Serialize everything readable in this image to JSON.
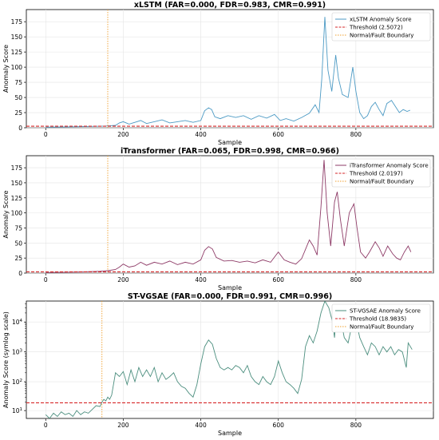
{
  "figure": {
    "panels": [
      {
        "title": "xLSTM (FAR=0.000, FDR=0.983, CMR=0.991)",
        "xlabel": "Sample",
        "ylabel": "Anomaly Score",
        "legend": [
          "xLSTM Anomaly Score",
          "Threshold (2.5072)",
          "Normal/Fault Boundary"
        ]
      },
      {
        "title": "iTransformer (FAR=0.065, FDR=0.998, CMR=0.966)",
        "xlabel": "Sample",
        "ylabel": "Anomaly Score",
        "legend": [
          "iTransformer Anomaly Score",
          "Threshold (2.0197)",
          "Normal/Fault Boundary"
        ]
      },
      {
        "title": "ST-VGSAE (FAR=0.000, FDR=0.991, CMR=0.996)",
        "xlabel": "Sample",
        "ylabel": "Anomaly Score (symlog scale)",
        "legend": [
          "ST-VGSAE Anomaly Score",
          "Threshold (18.9835)",
          "Normal/Fault Boundary"
        ]
      }
    ]
  },
  "chart_data": [
    {
      "type": "line",
      "title": "xLSTM (FAR=0.000, FDR=0.983, CMR=0.991)",
      "xlabel": "Sample",
      "ylabel": "Anomaly Score",
      "xlim": [
        -50,
        1000
      ],
      "ylim": [
        0,
        195
      ],
      "xticks": [
        0,
        200,
        400,
        600,
        800
      ],
      "yticks": [
        0,
        25,
        50,
        75,
        100,
        125,
        150,
        175
      ],
      "yscale": "linear",
      "grid": true,
      "legend_position": "top-right",
      "threshold": 2.5072,
      "boundary": 160,
      "series": [
        {
          "name": "xLSTM Anomaly Score",
          "color": "#4c9ac4",
          "points": [
            [
              0,
              1
            ],
            [
              50,
              1.5
            ],
            [
              100,
              2
            ],
            [
              140,
              2.5
            ],
            [
              160,
              3
            ],
            [
              180,
              4
            ],
            [
              190,
              8
            ],
            [
              200,
              10
            ],
            [
              215,
              6
            ],
            [
              230,
              9
            ],
            [
              245,
              12
            ],
            [
              260,
              7
            ],
            [
              280,
              10
            ],
            [
              300,
              13
            ],
            [
              320,
              8
            ],
            [
              340,
              10
            ],
            [
              360,
              12
            ],
            [
              380,
              9
            ],
            [
              400,
              12
            ],
            [
              410,
              28
            ],
            [
              420,
              33
            ],
            [
              428,
              30
            ],
            [
              436,
              18
            ],
            [
              450,
              15
            ],
            [
              470,
              20
            ],
            [
              490,
              17
            ],
            [
              510,
              20
            ],
            [
              530,
              14
            ],
            [
              550,
              20
            ],
            [
              570,
              16
            ],
            [
              590,
              22
            ],
            [
              605,
              12
            ],
            [
              620,
              15
            ],
            [
              640,
              11
            ],
            [
              660,
              17
            ],
            [
              680,
              24
            ],
            [
              695,
              38
            ],
            [
              705,
              25
            ],
            [
              712,
              80
            ],
            [
              720,
              183
            ],
            [
              728,
              95
            ],
            [
              738,
              60
            ],
            [
              748,
              120
            ],
            [
              755,
              82
            ],
            [
              765,
              55
            ],
            [
              780,
              50
            ],
            [
              792,
              100
            ],
            [
              800,
              60
            ],
            [
              810,
              25
            ],
            [
              820,
              15
            ],
            [
              830,
              20
            ],
            [
              840,
              35
            ],
            [
              850,
              42
            ],
            [
              860,
              30
            ],
            [
              870,
              20
            ],
            [
              880,
              40
            ],
            [
              892,
              45
            ],
            [
              902,
              35
            ],
            [
              912,
              25
            ],
            [
              922,
              30
            ],
            [
              932,
              27
            ],
            [
              940,
              29
            ]
          ]
        }
      ]
    },
    {
      "type": "line",
      "title": "iTransformer (FAR=0.065, FDR=0.998, CMR=0.966)",
      "xlabel": "Sample",
      "ylabel": "Anomaly Score",
      "xlim": [
        -50,
        1000
      ],
      "ylim": [
        0,
        195
      ],
      "xticks": [
        0,
        200,
        400,
        600,
        800
      ],
      "yticks": [
        0,
        25,
        50,
        75,
        100,
        125,
        150,
        175
      ],
      "yscale": "linear",
      "grid": true,
      "legend_position": "top-right",
      "threshold": 2.0197,
      "boundary": 160,
      "series": [
        {
          "name": "iTransformer Anomaly Score",
          "color": "#8e3b67",
          "points": [
            [
              0,
              1
            ],
            [
              50,
              1.5
            ],
            [
              100,
              2
            ],
            [
              140,
              3
            ],
            [
              160,
              4
            ],
            [
              180,
              6
            ],
            [
              190,
              10
            ],
            [
              200,
              15
            ],
            [
              215,
              10
            ],
            [
              230,
              12
            ],
            [
              245,
              18
            ],
            [
              260,
              13
            ],
            [
              280,
              18
            ],
            [
              300,
              15
            ],
            [
              320,
              20
            ],
            [
              340,
              14
            ],
            [
              360,
              18
            ],
            [
              380,
              15
            ],
            [
              400,
              22
            ],
            [
              410,
              38
            ],
            [
              420,
              44
            ],
            [
              430,
              40
            ],
            [
              440,
              26
            ],
            [
              460,
              20
            ],
            [
              480,
              21
            ],
            [
              500,
              18
            ],
            [
              520,
              20
            ],
            [
              540,
              17
            ],
            [
              560,
              22
            ],
            [
              580,
              18
            ],
            [
              600,
              35
            ],
            [
              615,
              22
            ],
            [
              630,
              18
            ],
            [
              645,
              15
            ],
            [
              660,
              24
            ],
            [
              680,
              55
            ],
            [
              690,
              45
            ],
            [
              700,
              30
            ],
            [
              710,
              110
            ],
            [
              718,
              188
            ],
            [
              726,
              100
            ],
            [
              735,
              45
            ],
            [
              745,
              118
            ],
            [
              752,
              135
            ],
            [
              760,
              90
            ],
            [
              770,
              45
            ],
            [
              783,
              100
            ],
            [
              795,
              115
            ],
            [
              803,
              75
            ],
            [
              812,
              35
            ],
            [
              825,
              25
            ],
            [
              835,
              35
            ],
            [
              850,
              52
            ],
            [
              860,
              42
            ],
            [
              870,
              28
            ],
            [
              882,
              45
            ],
            [
              895,
              32
            ],
            [
              905,
              25
            ],
            [
              915,
              22
            ],
            [
              925,
              35
            ],
            [
              935,
              45
            ],
            [
              942,
              35
            ]
          ]
        }
      ]
    },
    {
      "type": "line",
      "title": "ST-VGSAE (FAR=0.000, FDR=0.991, CMR=0.996)",
      "xlabel": "Sample",
      "ylabel": "Anomaly Score (symlog scale)",
      "xlim": [
        -50,
        1000
      ],
      "xticks": [
        0,
        200,
        400,
        600,
        800
      ],
      "yscale": "symlog",
      "ytick_labels": [
        "10^1",
        "10^2",
        "10^3",
        "10^4"
      ],
      "grid": true,
      "legend_position": "top-right",
      "threshold": 18.9835,
      "boundary": 145,
      "series": [
        {
          "name": "ST-VGSAE Anomaly Score",
          "color": "#4b8e7e",
          "points": [
            [
              0,
              7
            ],
            [
              10,
              5
            ],
            [
              20,
              8
            ],
            [
              30,
              6
            ],
            [
              40,
              9
            ],
            [
              50,
              7
            ],
            [
              60,
              8
            ],
            [
              70,
              6
            ],
            [
              80,
              10
            ],
            [
              90,
              7
            ],
            [
              100,
              9
            ],
            [
              110,
              8
            ],
            [
              120,
              11
            ],
            [
              130,
              15
            ],
            [
              140,
              14
            ],
            [
              145,
              20
            ],
            [
              150,
              25
            ],
            [
              155,
              22
            ],
            [
              160,
              30
            ],
            [
              165,
              25
            ],
            [
              170,
              35
            ],
            [
              180,
              200
            ],
            [
              190,
              150
            ],
            [
              200,
              220
            ],
            [
              210,
              80
            ],
            [
              220,
              250
            ],
            [
              230,
              100
            ],
            [
              240,
              300
            ],
            [
              250,
              150
            ],
            [
              260,
              250
            ],
            [
              270,
              150
            ],
            [
              280,
              300
            ],
            [
              290,
              100
            ],
            [
              300,
              200
            ],
            [
              310,
              120
            ],
            [
              320,
              150
            ],
            [
              330,
              200
            ],
            [
              340,
              100
            ],
            [
              350,
              70
            ],
            [
              360,
              60
            ],
            [
              370,
              40
            ],
            [
              380,
              30
            ],
            [
              390,
              80
            ],
            [
              400,
              400
            ],
            [
              410,
              1500
            ],
            [
              420,
              2500
            ],
            [
              430,
              1800
            ],
            [
              440,
              600
            ],
            [
              450,
              300
            ],
            [
              460,
              250
            ],
            [
              470,
              300
            ],
            [
              480,
              250
            ],
            [
              490,
              350
            ],
            [
              500,
              300
            ],
            [
              510,
              200
            ],
            [
              520,
              350
            ],
            [
              530,
              150
            ],
            [
              540,
              100
            ],
            [
              550,
              80
            ],
            [
              560,
              150
            ],
            [
              570,
              100
            ],
            [
              580,
              80
            ],
            [
              590,
              150
            ],
            [
              600,
              500
            ],
            [
              610,
              200
            ],
            [
              620,
              100
            ],
            [
              630,
              80
            ],
            [
              640,
              60
            ],
            [
              650,
              40
            ],
            [
              660,
              120
            ],
            [
              670,
              1500
            ],
            [
              680,
              3500
            ],
            [
              690,
              2000
            ],
            [
              700,
              5000
            ],
            [
              710,
              20000
            ],
            [
              720,
              50000
            ],
            [
              730,
              30000
            ],
            [
              740,
              10000
            ],
            [
              745,
              3000
            ],
            [
              750,
              30000
            ],
            [
              760,
              15000
            ],
            [
              770,
              3000
            ],
            [
              780,
              2000
            ],
            [
              790,
              8000
            ],
            [
              800,
              12000
            ],
            [
              810,
              3000
            ],
            [
              820,
              1500
            ],
            [
              830,
              800
            ],
            [
              840,
              2000
            ],
            [
              850,
              1500
            ],
            [
              860,
              800
            ],
            [
              870,
              1500
            ],
            [
              880,
              1000
            ],
            [
              890,
              1500
            ],
            [
              900,
              800
            ],
            [
              910,
              1200
            ],
            [
              920,
              1000
            ],
            [
              930,
              300
            ],
            [
              935,
              2000
            ],
            [
              945,
              1200
            ]
          ]
        }
      ]
    }
  ]
}
